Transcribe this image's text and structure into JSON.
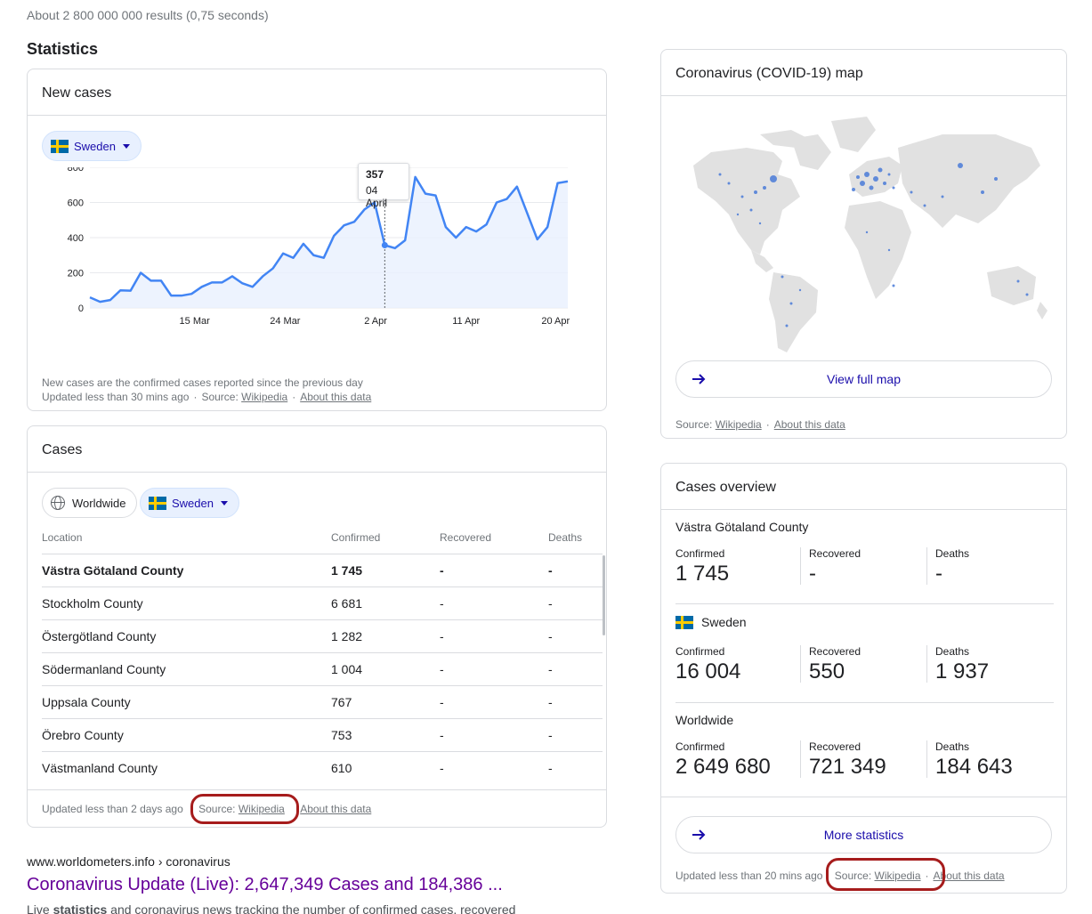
{
  "result_stats": "About 2 800 000 000 results (0,75 seconds)",
  "section_title": "Statistics",
  "new_cases": {
    "title": "New cases",
    "country_chip": "Sweden",
    "tooltip": {
      "value": "357",
      "date": "04 April"
    },
    "footnote": "New cases are the confirmed cases reported since the previous day",
    "updated": "Updated less than 30 mins ago",
    "source_label": "Source:",
    "source_link": "Wikipedia",
    "about_link": "About this data"
  },
  "chart_data": {
    "type": "area",
    "title": "New cases",
    "x_tick_labels": [
      "15 Mar",
      "24 Mar",
      "2 Apr",
      "11 Apr",
      "20 Apr"
    ],
    "y_tick_labels": [
      "0",
      "200",
      "400",
      "600",
      "800"
    ],
    "ylim": [
      0,
      800
    ],
    "series": [
      {
        "values": [
          60,
          35,
          45,
          100,
          98,
          200,
          155,
          155,
          70,
          70,
          80,
          120,
          145,
          145,
          180,
          140,
          120,
          180,
          225,
          310,
          285,
          365,
          300,
          285,
          410,
          470,
          490,
          560,
          600,
          357,
          340,
          385,
          745,
          650,
          640,
          460,
          400,
          460,
          435,
          475,
          600,
          620,
          690,
          540,
          390,
          460,
          710,
          720
        ]
      }
    ],
    "highlight": {
      "index": 29,
      "value": 357,
      "label": "04 April"
    },
    "grid": true,
    "color": "#4285f4"
  },
  "cases": {
    "title": "Cases",
    "chip_worldwide": "Worldwide",
    "chip_country": "Sweden",
    "columns": [
      "Location",
      "Confirmed",
      "Recovered",
      "Deaths"
    ],
    "rows": [
      [
        "Västra Götaland County",
        "1 745",
        "-",
        "-"
      ],
      [
        "Stockholm County",
        "6 681",
        "-",
        "-"
      ],
      [
        "Östergötland County",
        "1 282",
        "-",
        "-"
      ],
      [
        "Södermanland County",
        "1 004",
        "-",
        "-"
      ],
      [
        "Uppsala County",
        "767",
        "-",
        "-"
      ],
      [
        "Örebro County",
        "753",
        "-",
        "-"
      ],
      [
        "Västmanland County",
        "610",
        "-",
        "-"
      ]
    ],
    "updated": "Updated less than 2 days ago",
    "source_label": "Source:",
    "source_link": "Wikipedia",
    "about_link": "About this data"
  },
  "map": {
    "title": "Coronavirus (COVID-19) map",
    "button": "View full map",
    "source_label": "Source:",
    "source_link": "Wikipedia",
    "about_link": "About this data"
  },
  "overview": {
    "title": "Cases overview",
    "regions": [
      {
        "name": "Västra Götaland County",
        "confirmed": "1 745",
        "recovered": "-",
        "deaths": "-"
      },
      {
        "name": "Sweden",
        "confirmed": "16 004",
        "recovered": "550",
        "deaths": "1 937"
      },
      {
        "name": "Worldwide",
        "confirmed": "2 649 680",
        "recovered": "721 349",
        "deaths": "184 643"
      }
    ],
    "labels": {
      "confirmed": "Confirmed",
      "recovered": "Recovered",
      "deaths": "Deaths"
    },
    "button": "More statistics",
    "updated": "Updated less than 20 mins ago",
    "source_label": "Source:",
    "source_link": "Wikipedia",
    "about_link": "About this data"
  },
  "search_result": {
    "url": "www.worldometers.info › coronavirus",
    "title": "Coronavirus Update (Live): 2,647,349 Cases and 184,386 ...",
    "snippet_prefix": "Live ",
    "snippet_bold": "statistics",
    "snippet_suffix": " and coronavirus news tracking the number of confirmed cases, recovered"
  },
  "colors": {
    "accent": "#1a0dab",
    "line": "#4285f4",
    "highlight_ring": "#a61c1c",
    "visited_link": "#660099"
  }
}
